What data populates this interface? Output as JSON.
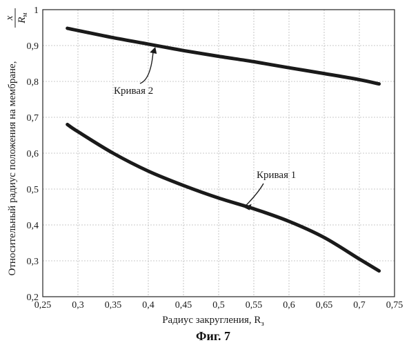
{
  "chart_data": {
    "type": "line",
    "xlabel": "Радиус закругления, R",
    "xlabel_sub": "з",
    "ylabel_text": "Относительный радиус положения на мембране,",
    "ylabel_frac_num": "x",
    "ylabel_frac_den": "R",
    "ylabel_frac_den_sub": "м",
    "xlim": [
      0.25,
      0.75
    ],
    "ylim": [
      0.2,
      1.0
    ],
    "x_ticks": [
      0.25,
      0.3,
      0.35,
      0.4,
      0.45,
      0.5,
      0.55,
      0.6,
      0.65,
      0.7,
      0.75
    ],
    "x_tick_labels": [
      "0,25",
      "0,3",
      "0,35",
      "0,4",
      "0,45",
      "0,5",
      "0,55",
      "0,6",
      "0,65",
      "0,7",
      "0,75"
    ],
    "y_ticks": [
      0.2,
      0.3,
      0.4,
      0.5,
      0.6,
      0.7,
      0.8,
      0.9,
      1.0
    ],
    "y_tick_labels": [
      "0,2",
      "0,3",
      "0,4",
      "0,5",
      "0,6",
      "0,7",
      "0,8",
      "0,9",
      "1"
    ],
    "grid": true,
    "series": [
      {
        "name": "Кривая 1",
        "x": [
          0.285,
          0.3,
          0.35,
          0.4,
          0.45,
          0.5,
          0.55,
          0.6,
          0.65,
          0.7,
          0.728
        ],
        "y": [
          0.68,
          0.66,
          0.6,
          0.55,
          0.51,
          0.475,
          0.445,
          0.41,
          0.365,
          0.305,
          0.272
        ]
      },
      {
        "name": "Кривая 2",
        "x": [
          0.285,
          0.3,
          0.35,
          0.4,
          0.45,
          0.5,
          0.55,
          0.6,
          0.65,
          0.7,
          0.728
        ],
        "y": [
          0.948,
          0.942,
          0.922,
          0.904,
          0.886,
          0.87,
          0.855,
          0.838,
          0.822,
          0.805,
          0.793
        ]
      }
    ],
    "annotations": [
      {
        "text": "Кривая 1",
        "series": 0,
        "x": 0.535,
        "y": 0.445
      },
      {
        "text": "Кривая 2",
        "series": 1,
        "x": 0.41,
        "y": 0.9
      }
    ]
  },
  "caption": "Фиг. 7"
}
